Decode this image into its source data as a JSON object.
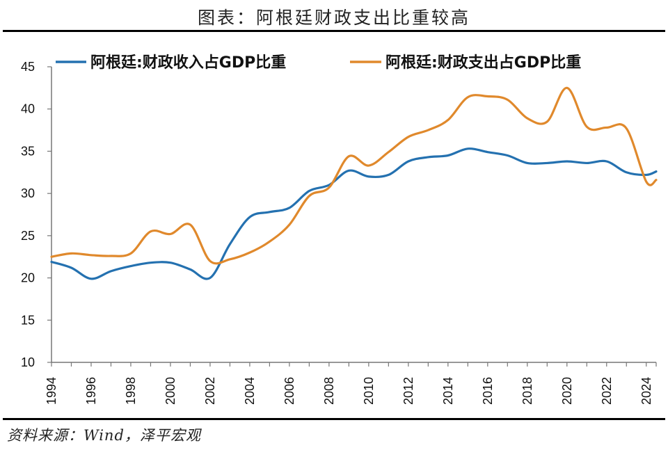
{
  "title": "图表：阿根廷财政支出比重较高",
  "source": "资料来源：Wind，泽平宏观",
  "chart_data": {
    "type": "line",
    "x": [
      1994,
      1995,
      1996,
      1997,
      1998,
      1999,
      2000,
      2001,
      2002,
      2003,
      2004,
      2005,
      2006,
      2007,
      2008,
      2009,
      2010,
      2011,
      2012,
      2013,
      2014,
      2015,
      2016,
      2017,
      2018,
      2019,
      2020,
      2021,
      2022,
      2023,
      2024,
      2024.5
    ],
    "series": [
      {
        "name": "阿根廷:财政收入占GDP比重",
        "color": "#2471b0",
        "values": [
          21.9,
          21.2,
          19.9,
          20.8,
          21.4,
          21.8,
          21.8,
          21.0,
          20.0,
          24.0,
          27.2,
          27.8,
          28.3,
          30.3,
          31.0,
          32.7,
          32.0,
          32.2,
          33.8,
          34.3,
          34.5,
          35.3,
          34.9,
          34.5,
          33.6,
          33.6,
          33.8,
          33.6,
          33.8,
          32.5,
          32.2,
          32.6
        ]
      },
      {
        "name": "阿根廷:财政支出占GDP比重",
        "color": "#e0892c",
        "values": [
          22.5,
          22.9,
          22.7,
          22.6,
          22.9,
          25.5,
          25.2,
          26.3,
          22.0,
          22.2,
          23.0,
          24.3,
          26.3,
          29.7,
          30.7,
          34.4,
          33.3,
          34.9,
          36.7,
          37.5,
          38.7,
          41.4,
          41.5,
          41.1,
          38.9,
          38.5,
          42.5,
          37.9,
          37.8,
          37.7,
          31.4,
          31.6
        ]
      }
    ],
    "xtick_labels": [
      "1994",
      "1996",
      "1998",
      "2000",
      "2002",
      "2004",
      "2006",
      "2008",
      "2010",
      "2012",
      "2014",
      "2016",
      "2018",
      "2020",
      "2022",
      "2024"
    ],
    "yticks": [
      10,
      15,
      20,
      25,
      30,
      35,
      40,
      45
    ],
    "ylim": [
      10,
      45
    ],
    "xlim": [
      1994,
      2024.5
    ],
    "grid": false,
    "legend_position": "top"
  }
}
